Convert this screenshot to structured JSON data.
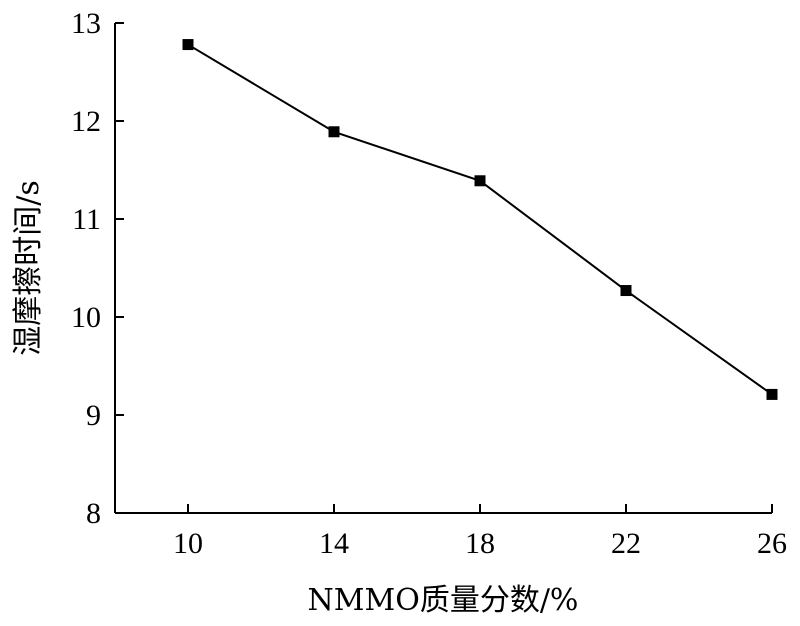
{
  "chart_data": {
    "type": "line",
    "title": "",
    "xlabel": "NMMO质量分数/%",
    "ylabel": "湿摩擦时间/s",
    "x": [
      10,
      14,
      18,
      22,
      26
    ],
    "series": [
      {
        "values": [
          12.78,
          11.89,
          11.39,
          10.27,
          9.21
        ],
        "marker": "square",
        "color": "#000000"
      }
    ],
    "xlim": [
      8,
      26
    ],
    "ylim": [
      8,
      13
    ],
    "xticks": [
      "10",
      "14",
      "18",
      "22",
      "26"
    ],
    "yticks": [
      "8",
      "9",
      "10",
      "11",
      "12",
      "13"
    ],
    "grid": false,
    "legend": "none"
  }
}
